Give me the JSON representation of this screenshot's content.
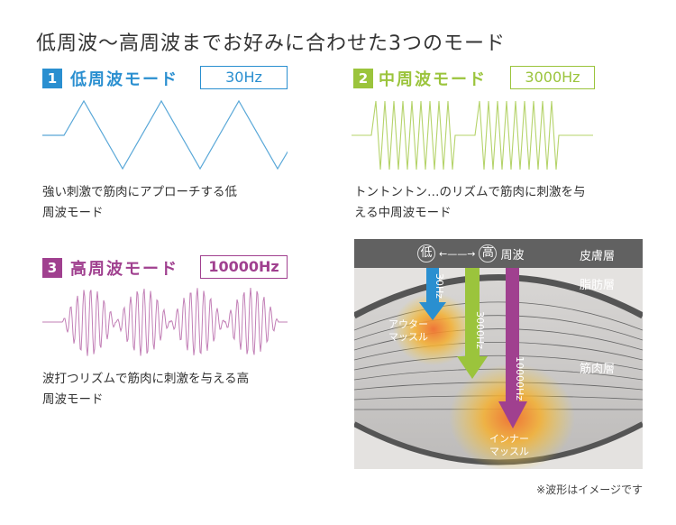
{
  "title": "低周波～高周波までお好みに合わせた3つのモード",
  "colors": {
    "low": "#2a8fd0",
    "mid": "#9bc43c",
    "high": "#a0408f"
  },
  "modes": [
    {
      "num": "1",
      "label": "低周波モード",
      "hz": "30Hz",
      "desc_lines": [
        "強い刺激で筋肉にアプローチする低",
        "周波モード"
      ]
    },
    {
      "num": "2",
      "label": "中周波モード",
      "hz": "3000Hz",
      "desc_lines": [
        "トントントン…のリズムで筋肉に刺激を与",
        "える中周波モード"
      ]
    },
    {
      "num": "3",
      "label": "高周波モード",
      "hz": "10000Hz",
      "desc_lines": [
        "波打つリズムで筋肉に刺激を与える高",
        "周波モード"
      ]
    }
  ],
  "diagram": {
    "header": {
      "low": "低",
      "arrow": "←——→",
      "high": "高",
      "suffix": "周波",
      "skin": "皮膚層"
    },
    "layers": {
      "fat": "脂肪層",
      "muscle": "筋肉層"
    },
    "arrows": [
      "30Hz",
      "3000Hz",
      "10000Hz"
    ],
    "outer_muscle": [
      "アウター",
      "マッスル"
    ],
    "inner_muscle": [
      "インナー",
      "マッスル"
    ]
  },
  "footnote": "※波形はイメージです"
}
